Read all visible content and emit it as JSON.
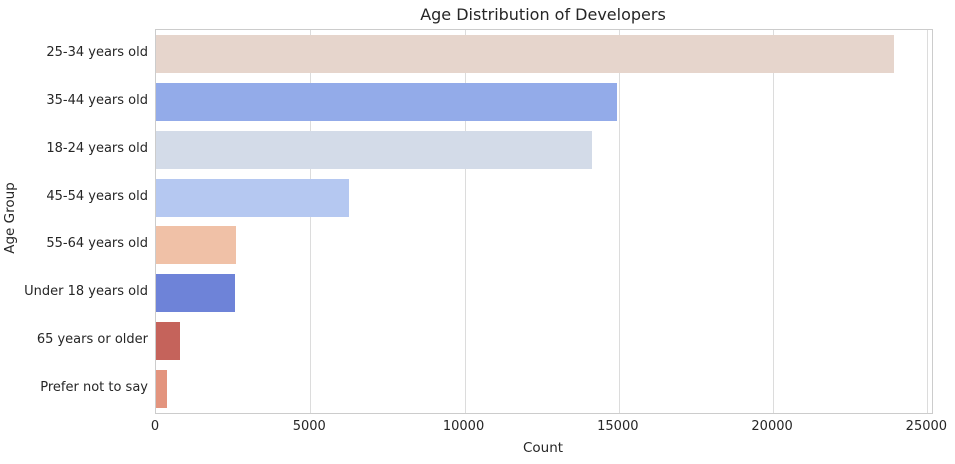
{
  "chart_data": {
    "type": "bar",
    "orientation": "horizontal",
    "title": "Age Distribution of Developers",
    "xlabel": "Count",
    "ylabel": "Age Group",
    "categories": [
      "25-34 years old",
      "35-44 years old",
      "18-24 years old",
      "45-54 years old",
      "55-64 years old",
      "Under 18 years old",
      "65 years or older",
      "Prefer not to say"
    ],
    "values": [
      23930,
      14930,
      14120,
      6250,
      2580,
      2570,
      780,
      350
    ],
    "bar_colors": [
      "#e6d5cc",
      "#93abe9",
      "#d3dbe8",
      "#b5c8f1",
      "#f0c1a7",
      "#6e83d8",
      "#c5635b",
      "#e3947e"
    ],
    "xlim": [
      0,
      25150
    ],
    "xticks": [
      0,
      5000,
      10000,
      15000,
      20000,
      25000
    ],
    "xtick_labels": [
      "0",
      "5000",
      "10000",
      "15000",
      "20000",
      "25000"
    ],
    "grid": "vertical-only",
    "legend": "none"
  },
  "style": {
    "text_color": "#262626",
    "grid_color": "#dcdcdc",
    "spine_color": "#cccccc",
    "background": "#ffffff"
  }
}
